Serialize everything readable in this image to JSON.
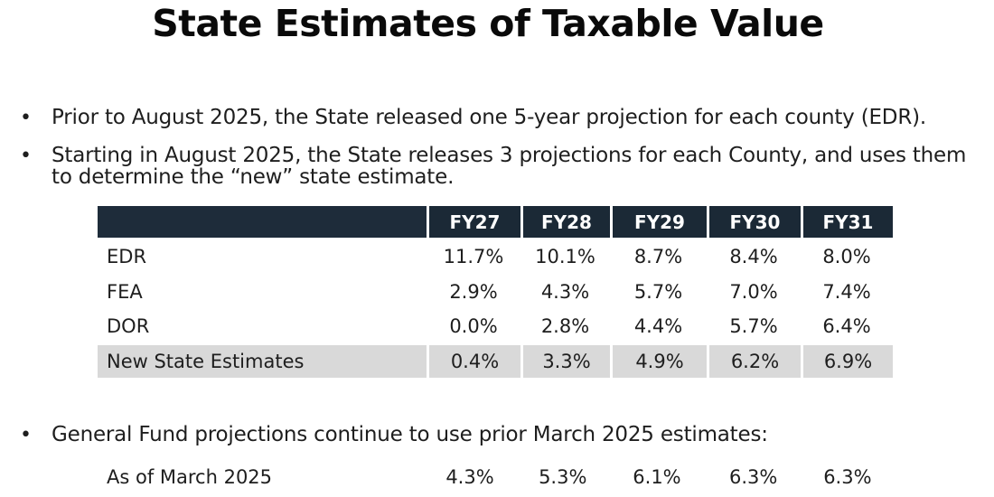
{
  "title": "State Estimates of Taxable Value",
  "bullets": [
    {
      "lines": [
        "Prior to August 2025, the State released one 5-year projection for each county (EDR)."
      ]
    },
    {
      "lines": [
        "Starting in August 2025, the State releases 3 projections for each County, and uses them",
        "to determine the “new” state estimate."
      ]
    }
  ],
  "table": {
    "headers": [
      "FY27",
      "FY28",
      "FY29",
      "FY30",
      "FY31"
    ],
    "rows": [
      {
        "label": "EDR",
        "values": [
          "11.7%",
          "10.1%",
          "8.7%",
          "8.4%",
          "8.0%"
        ]
      },
      {
        "label": "FEA",
        "values": [
          "2.9%",
          "4.3%",
          "5.7%",
          "7.0%",
          "7.4%"
        ]
      },
      {
        "label": "DOR",
        "values": [
          "0.0%",
          "2.8%",
          "4.4%",
          "5.7%",
          "6.4%"
        ]
      },
      {
        "label": "New State Estimates",
        "values": [
          "0.4%",
          "3.3%",
          "4.9%",
          "6.2%",
          "6.9%"
        ]
      }
    ],
    "header_color": "#1b2936",
    "shade_color": "#d9d9d9"
  },
  "bullet3": "General Fund projections continue to use prior March 2025 estimates:",
  "march": {
    "label": "As of March 2025",
    "values": [
      "4.3%",
      "5.3%",
      "6.1%",
      "6.3%",
      "6.3%"
    ]
  }
}
